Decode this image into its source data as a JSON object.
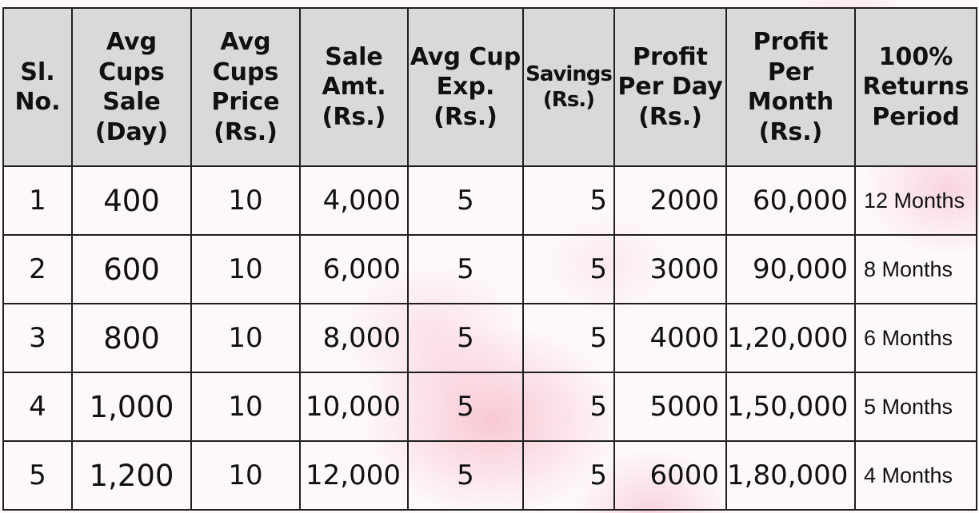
{
  "table": {
    "headers": [
      "Sl. No.",
      "Avg Cups Sale (Day)",
      "Avg Cups Price (Rs.)",
      "Sale Amt. (Rs.)",
      "Avg Cup Exp. (Rs.)",
      "Savings (Rs.)",
      "Profit Per Day (Rs.)",
      "Profit Per Month (Rs.)",
      "100% Returns Period"
    ],
    "rows": [
      {
        "sl": "1",
        "cups": "400",
        "price": "10",
        "sale": "4,000",
        "exp": "5",
        "savings": "5",
        "profit_day": "2000",
        "profit_month": "60,000",
        "period": "12 Months"
      },
      {
        "sl": "2",
        "cups": "600",
        "price": "10",
        "sale": "6,000",
        "exp": "5",
        "savings": "5",
        "profit_day": "3000",
        "profit_month": "90,000",
        "period": "8 Months"
      },
      {
        "sl": "3",
        "cups": "800",
        "price": "10",
        "sale": "8,000",
        "exp": "5",
        "savings": "5",
        "profit_day": "4000",
        "profit_month": "1,20,000",
        "period": "6 Months"
      },
      {
        "sl": "4",
        "cups": "1,000",
        "price": "10",
        "sale": "10,000",
        "exp": "5",
        "savings": "5",
        "profit_day": "5000",
        "profit_month": "1,50,000",
        "period": "5 Months"
      },
      {
        "sl": "5",
        "cups": "1,200",
        "price": "10",
        "sale": "12,000",
        "exp": "5",
        "savings": "5",
        "profit_day": "6000",
        "profit_month": "1,80,000",
        "period": "4 Months"
      }
    ]
  },
  "colors": {
    "header_bg": "#d9d9d9",
    "border": "#1f1f1f",
    "background_tint": "#f5a0b4"
  }
}
